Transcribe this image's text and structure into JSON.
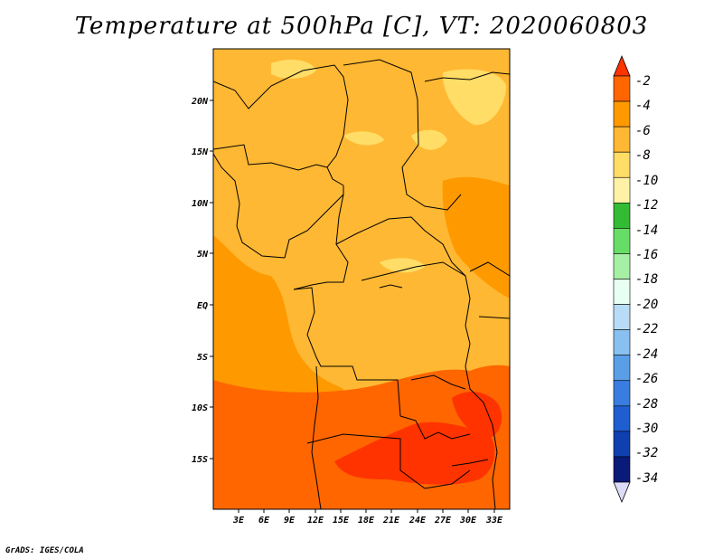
{
  "title": "Temperature at 500hPa [C], VT: 2020060803",
  "credit": "GrADS: IGES/COLA",
  "map": {
    "lat_labels": [
      "20N",
      "15N",
      "10N",
      "5N",
      "EQ",
      "5S",
      "10S",
      "15S"
    ],
    "lon_labels": [
      "3E",
      "6E",
      "9E",
      "12E",
      "15E",
      "18E",
      "21E",
      "24E",
      "27E",
      "30E",
      "33E"
    ]
  },
  "colorbar": {
    "labels": [
      "-2",
      "-4",
      "-6",
      "-8",
      "-10",
      "-12",
      "-14",
      "-16",
      "-18",
      "-20",
      "-22",
      "-24",
      "-26",
      "-28",
      "-30",
      "-32",
      "-34"
    ],
    "colors": [
      "#ff3300",
      "#ff6600",
      "#ff9900",
      "#ffb833",
      "#ffdd66",
      "#fff2a6",
      "#33bb33",
      "#66dd66",
      "#a6f0a6",
      "#e8fff4",
      "#b8dcf8",
      "#88c0f0",
      "#5a9ee8",
      "#3a7de0",
      "#1e5ed0",
      "#0f40b0",
      "#0a1a78"
    ],
    "top_arrow_color": "#ff3300",
    "bottom_arrow_color": "#dcdcf8"
  },
  "field_colors": {
    "warm1": "#ff6600",
    "warm2": "#ff9900",
    "mid": "#ffb833",
    "cool": "#ffdd66",
    "hot": "#ff3300"
  }
}
